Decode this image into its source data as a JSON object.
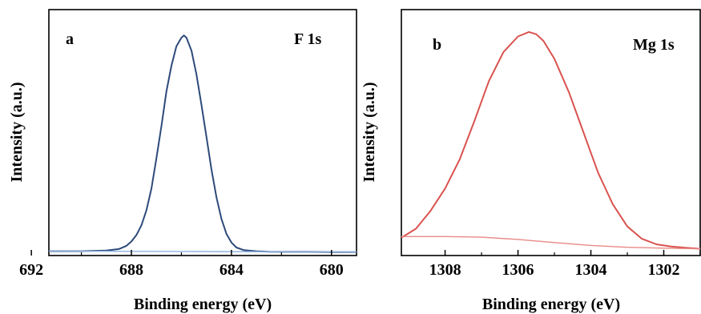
{
  "chart_data": [
    {
      "type": "line",
      "panel_label": "a",
      "title": "F 1s",
      "xlabel": "Binding energy (eV)",
      "ylabel": "Intensity (a.u.)",
      "x_reversed": true,
      "xlim": [
        691.3,
        679.0
      ],
      "ylim": [
        0,
        1.14
      ],
      "xticks": [
        692,
        688,
        684,
        680
      ],
      "xtick_labels": [
        "692",
        "688",
        "684",
        "680"
      ],
      "minor_xticks": [
        690,
        686,
        682
      ],
      "y_ticks_shown": false,
      "series": [
        {
          "color": "#2d4a7a",
          "x": [
            691.3,
            690.0,
            689.0,
            688.5,
            688.2,
            688.0,
            687.8,
            687.6,
            687.4,
            687.2,
            687.0,
            686.8,
            686.6,
            686.4,
            686.2,
            686.0,
            685.9,
            685.8,
            685.6,
            685.4,
            685.2,
            685.0,
            684.8,
            684.6,
            684.4,
            684.2,
            684.0,
            683.8,
            683.5,
            683.0,
            682.5,
            682.0,
            681.0,
            680.0,
            679.0
          ],
          "y": [
            0.02,
            0.02,
            0.023,
            0.03,
            0.045,
            0.065,
            0.095,
            0.14,
            0.21,
            0.31,
            0.45,
            0.6,
            0.76,
            0.88,
            0.97,
            1.01,
            1.02,
            1.01,
            0.95,
            0.84,
            0.7,
            0.55,
            0.4,
            0.27,
            0.17,
            0.1,
            0.06,
            0.037,
            0.025,
            0.02,
            0.018,
            0.017,
            0.017,
            0.016,
            0.016
          ]
        },
        {
          "color": "#8fb3e0",
          "x": [
            691.3,
            686.0,
            679.0
          ],
          "y": [
            0.02,
            0.019,
            0.016
          ]
        }
      ]
    },
    {
      "type": "line",
      "panel_label": "b",
      "title": "Mg 1s",
      "xlabel": "Binding energy (eV)",
      "ylabel": "Intensity (a.u.)",
      "x_reversed": true,
      "xlim": [
        1309.2,
        1301.0
      ],
      "ylim": [
        0,
        1.1
      ],
      "xticks": [
        1308,
        1306,
        1304,
        1302
      ],
      "xtick_labels": [
        "1308",
        "1306",
        "1304",
        "1302"
      ],
      "minor_xticks": [
        1307,
        1305,
        1303,
        1301
      ],
      "y_ticks_shown": false,
      "series": [
        {
          "color": "#d9534f",
          "x": [
            1309.2,
            1308.8,
            1308.4,
            1308.0,
            1307.6,
            1307.2,
            1306.8,
            1306.4,
            1306.0,
            1305.7,
            1305.5,
            1305.3,
            1305.0,
            1304.6,
            1304.2,
            1303.8,
            1303.4,
            1303.0,
            1302.6,
            1302.2,
            1301.8,
            1301.4,
            1301.0
          ],
          "y": [
            0.08,
            0.12,
            0.2,
            0.3,
            0.43,
            0.6,
            0.78,
            0.91,
            0.98,
            1.0,
            0.99,
            0.96,
            0.88,
            0.73,
            0.55,
            0.37,
            0.23,
            0.13,
            0.075,
            0.05,
            0.04,
            0.035,
            0.03
          ]
        },
        {
          "color": "#e88a86",
          "x": [
            1309.2,
            1308.0,
            1307.0,
            1306.0,
            1305.0,
            1304.0,
            1303.0,
            1302.0,
            1301.0
          ],
          "y": [
            0.085,
            0.085,
            0.082,
            0.072,
            0.058,
            0.045,
            0.037,
            0.033,
            0.03
          ]
        }
      ]
    }
  ]
}
